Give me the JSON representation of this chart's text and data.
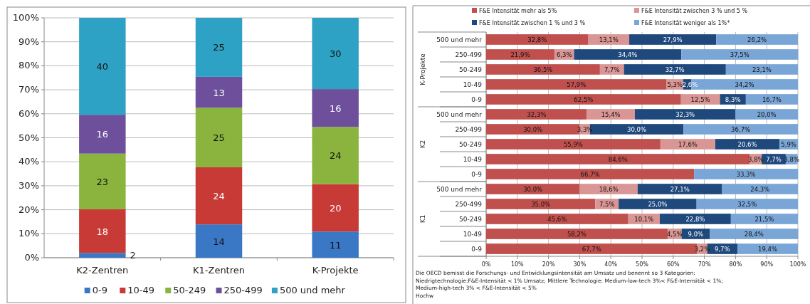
{
  "chart_data": [
    {
      "type": "bar",
      "stacked": true,
      "categories": [
        "K2-Zentren",
        "K1-Zentren",
        "K-Projekte"
      ],
      "series": [
        {
          "name": "0-9",
          "color": "#3a78c6",
          "values": [
            2.0,
            13.9,
            10.9
          ],
          "value_labels": [
            "2",
            "14",
            "11"
          ]
        },
        {
          "name": "10-49",
          "color": "#c73a35",
          "values": [
            18.2,
            23.8,
            19.8
          ],
          "value_labels": [
            "18",
            "24",
            "20"
          ]
        },
        {
          "name": "50-249",
          "color": "#8ab43e",
          "values": [
            23.2,
            24.8,
            23.8
          ],
          "value_labels": [
            "23",
            "25",
            "24"
          ]
        },
        {
          "name": "250-499",
          "color": "#6d4f9c",
          "values": [
            16.2,
            12.9,
            15.8
          ],
          "value_labels": [
            "16",
            "13",
            "16"
          ]
        },
        {
          "name": "500 und mehr",
          "color": "#2ea2c4",
          "values": [
            40.4,
            24.6,
            29.7
          ],
          "value_labels": [
            "40",
            "25",
            "30"
          ]
        }
      ],
      "ylim": [
        0,
        100
      ],
      "yticks": [
        {
          "value": 0,
          "label": "0%"
        },
        {
          "value": 10,
          "label": "10%"
        },
        {
          "value": 20,
          "label": "20%"
        },
        {
          "value": 30,
          "label": "30%"
        },
        {
          "value": 40,
          "label": "40%"
        },
        {
          "value": 50,
          "label": "50%"
        },
        {
          "value": 60,
          "label": "60%"
        },
        {
          "value": 70,
          "label": "70%"
        },
        {
          "value": 80,
          "label": "80%"
        },
        {
          "value": 90,
          "label": "90%"
        },
        {
          "value": 100,
          "label": "100%"
        }
      ],
      "grid": "y",
      "legend": "bottom"
    },
    {
      "type": "bar",
      "stacked": true,
      "orientation": "horizontal",
      "categories": [
        "500 und mehr",
        "250-499",
        "50-249",
        "10-49",
        "0-9",
        "500 und mehr",
        "250-499",
        "50-249",
        "10-49",
        "0-9",
        "500 und mehr",
        "250-499",
        "50-249",
        "10-49",
        "0-9"
      ],
      "series": [
        {
          "name": "F&E Intensität mehr als 5%",
          "color": "#c0504d",
          "values": [
            32.8,
            21.9,
            36.5,
            57.9,
            62.5,
            32.3,
            30.0,
            55.9,
            84.6,
            66.7,
            30.0,
            35.0,
            45.6,
            58.2,
            67.7
          ],
          "value_labels": [
            "32,8%",
            "21,9%",
            "36,5%",
            "57,9%",
            "62,5%",
            "32,3%",
            "30,0%",
            "55,9%",
            "84,6%",
            "66,7%",
            "30,0%",
            "35,0%",
            "45,6%",
            "58,2%",
            "67,7%"
          ]
        },
        {
          "name": "F&E Intensität zwischen 3 % und 5 %",
          "color": "#d99694",
          "values": [
            13.1,
            6.3,
            7.7,
            5.3,
            12.5,
            15.4,
            3.3,
            17.6,
            3.8,
            null,
            18.6,
            7.5,
            10.1,
            4.5,
            3.2
          ],
          "value_labels": [
            "13,1%",
            "6,3%",
            "7,7%",
            "5,3%",
            "12,5%",
            "15,4%",
            "3,3%",
            "17,6%",
            "3,8%",
            null,
            "18,6%",
            "7,5%",
            "10,1%",
            "4,5%",
            "3,2%"
          ]
        },
        {
          "name": "F&E Intensität zwischen 1 % und 3 %",
          "color": "#1f497d",
          "values": [
            27.9,
            34.4,
            32.7,
            2.6,
            8.3,
            32.3,
            30.0,
            20.6,
            7.7,
            null,
            27.1,
            25.0,
            22.8,
            9.0,
            9.7
          ],
          "value_labels": [
            "27,9%",
            "34,4%",
            "32,7%",
            "2,6%",
            "8,3%",
            "32,3%",
            "30,0%",
            "20,6%",
            "7,7%",
            null,
            "27,1%",
            "25,0%",
            "22,8%",
            "9,0%",
            "9,7%"
          ]
        },
        {
          "name": "F&E Intensität weniger als 1%*",
          "color": "#7aa6d7",
          "values": [
            26.2,
            37.5,
            23.1,
            34.2,
            16.7,
            20.0,
            36.7,
            5.9,
            3.8,
            33.3,
            24.3,
            32.5,
            21.5,
            28.4,
            19.4
          ],
          "value_labels": [
            "26,2%",
            "37,5%",
            "23,1%",
            "34,2%",
            "16,7%",
            "20,0%",
            "36,7%",
            "5,9%",
            "3,8%",
            "33,3%",
            "24,3%",
            "32,5%",
            "21,5%",
            "28,4%",
            "19,4%"
          ]
        }
      ],
      "xlim": [
        0,
        100
      ],
      "xticks": [
        {
          "value": 0,
          "label": "0%"
        },
        {
          "value": 10,
          "label": "10%"
        },
        {
          "value": 20,
          "label": "20%"
        },
        {
          "value": 30,
          "label": "30%"
        },
        {
          "value": 40,
          "label": "40%"
        },
        {
          "value": 50,
          "label": "50%"
        },
        {
          "value": 60,
          "label": "60%"
        },
        {
          "value": 70,
          "label": "70%"
        },
        {
          "value": 80,
          "label": "80%"
        },
        {
          "value": 90,
          "label": "90%"
        },
        {
          "value": 100,
          "label": "100%"
        }
      ],
      "grid": "x",
      "legend": "top",
      "annotations": [
        "K-Projekte",
        "K2",
        "K1",
        "Die OECD bemisst die Forschungs- und Entwicklungsintensität am Umsatz und benennt so 3 Kategorien:",
        "Niedrigtechnologie:F&E-Intensität < 1% Umsatz; Mittlere Technologie: Medium-low-tech 3%< F&E-Intensität < 1%;",
        "Medium-high-tech 3% < F&E-Intensität < 5%",
        "Hochw"
      ]
    }
  ]
}
